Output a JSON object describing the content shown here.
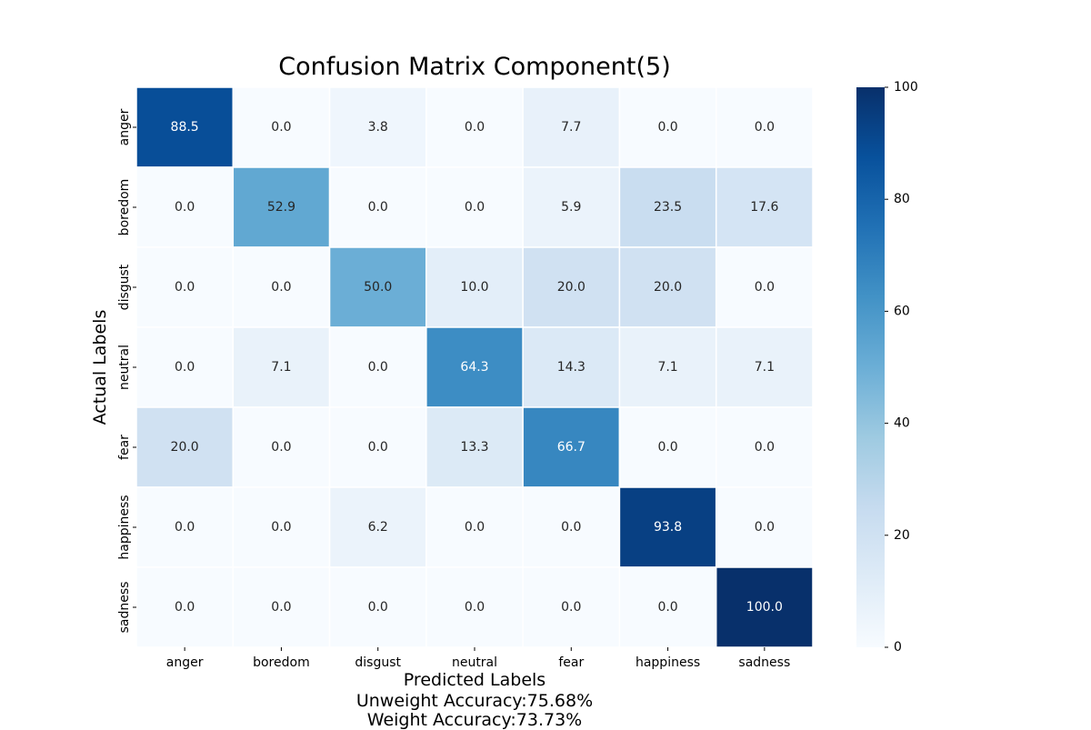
{
  "chart_data": {
    "type": "heatmap",
    "title": "Confusion Matrix Component(5)",
    "xlabel": "Predicted Labels",
    "ylabel": "Actual Labels",
    "footer_lines": [
      "Unweight Accuracy:75.68%",
      "Weight Accuracy:73.73%"
    ],
    "x_categories": [
      "anger",
      "boredom",
      "disgust",
      "neutral",
      "fear",
      "happiness",
      "sadness"
    ],
    "y_categories": [
      "anger",
      "boredom",
      "disgust",
      "neutral",
      "fear",
      "happiness",
      "sadness"
    ],
    "values": [
      [
        88.5,
        0.0,
        3.8,
        0.0,
        7.7,
        0.0,
        0.0
      ],
      [
        0.0,
        52.9,
        0.0,
        0.0,
        5.9,
        23.5,
        17.6
      ],
      [
        0.0,
        0.0,
        50.0,
        10.0,
        20.0,
        20.0,
        0.0
      ],
      [
        0.0,
        7.1,
        0.0,
        64.3,
        14.3,
        7.1,
        7.1
      ],
      [
        20.0,
        0.0,
        0.0,
        13.3,
        66.7,
        0.0,
        0.0
      ],
      [
        0.0,
        0.0,
        6.2,
        0.0,
        0.0,
        93.8,
        0.0
      ],
      [
        0.0,
        0.0,
        0.0,
        0.0,
        0.0,
        0.0,
        100.0
      ]
    ],
    "value_format_decimals": 1,
    "colormap": "Blues",
    "vmin": 0,
    "vmax": 100,
    "colorbar_ticks": [
      0,
      20,
      40,
      60,
      80,
      100
    ],
    "grid_line_color": "#ffffff"
  }
}
